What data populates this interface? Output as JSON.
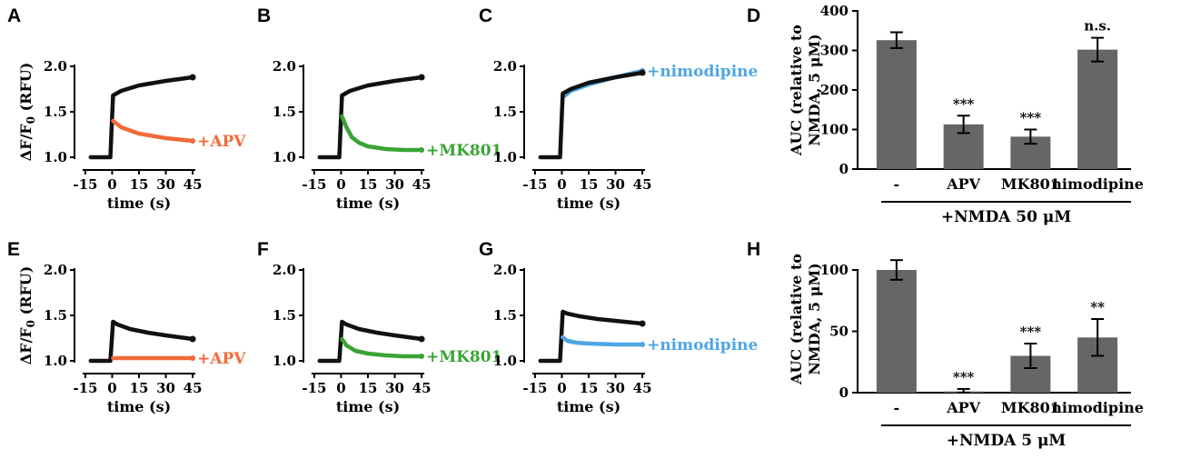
{
  "figure": {
    "panels": [
      "A",
      "B",
      "C",
      "D",
      "E",
      "F",
      "G",
      "H"
    ],
    "colors": {
      "control": "#111111",
      "APV": "#f26a3a",
      "MK801": "#3aa335",
      "nimodipine": "#4ea6e3",
      "bar": "#666666",
      "axis": "#000000"
    }
  },
  "chart_data": [
    {
      "panel": "A",
      "type": "line",
      "ylabel": "ΔF/F0 (RFU)",
      "xlabel": "time (s)",
      "xticks": [
        "-15",
        "0",
        "15",
        "30",
        "45"
      ],
      "yticks": [
        "1.0",
        "1.5",
        "2.0"
      ],
      "xlim": [
        -18,
        48
      ],
      "ylim": [
        0.9,
        2.15
      ],
      "annotation": "+APV",
      "series": [
        {
          "name": "control",
          "color": "#111111",
          "x": [
            -12,
            -1,
            0.5,
            5,
            15,
            30,
            45
          ],
          "y": [
            1.0,
            1.0,
            1.68,
            1.73,
            1.79,
            1.84,
            1.88
          ]
        },
        {
          "name": "+APV",
          "color": "#f26a3a",
          "x": [
            0.5,
            5,
            15,
            30,
            45
          ],
          "y": [
            1.4,
            1.33,
            1.26,
            1.21,
            1.18
          ]
        }
      ]
    },
    {
      "panel": "B",
      "type": "line",
      "ylabel": "",
      "xlabel": "time (s)",
      "xticks": [
        "-15",
        "0",
        "15",
        "30",
        "45"
      ],
      "yticks": [
        "1.0",
        "1.5",
        "2.0"
      ],
      "xlim": [
        -18,
        48
      ],
      "ylim": [
        0.9,
        2.15
      ],
      "annotation": "+MK801",
      "series": [
        {
          "name": "control",
          "color": "#111111",
          "x": [
            -12,
            -1,
            0.5,
            5,
            15,
            30,
            45
          ],
          "y": [
            1.0,
            1.0,
            1.68,
            1.73,
            1.79,
            1.84,
            1.88
          ]
        },
        {
          "name": "+MK801",
          "color": "#3aa335",
          "x": [
            0.5,
            3,
            6,
            10,
            15,
            25,
            35,
            45
          ],
          "y": [
            1.45,
            1.33,
            1.22,
            1.16,
            1.12,
            1.09,
            1.08,
            1.08
          ]
        }
      ]
    },
    {
      "panel": "C",
      "type": "line",
      "ylabel": "",
      "xlabel": "time (s)",
      "xticks": [
        "-15",
        "0",
        "15",
        "30",
        "45"
      ],
      "yticks": [
        "1.0",
        "1.5",
        "2.0"
      ],
      "xlim": [
        -18,
        48
      ],
      "ylim": [
        0.9,
        2.15
      ],
      "annotation": "+nimodipine",
      "series": [
        {
          "name": "+nimodipine",
          "color": "#4ea6e3",
          "x": [
            0.5,
            5,
            15,
            30,
            45
          ],
          "y": [
            1.66,
            1.73,
            1.8,
            1.88,
            1.95
          ]
        },
        {
          "name": "control",
          "color": "#111111",
          "x": [
            -12,
            -1,
            0.5,
            5,
            15,
            30,
            45
          ],
          "y": [
            1.0,
            1.0,
            1.7,
            1.75,
            1.82,
            1.88,
            1.93
          ]
        }
      ]
    },
    {
      "panel": "D",
      "type": "bar",
      "ylabel": "AUC (relative to NMDA, 5 μM)",
      "categories": [
        "-",
        "APV",
        "MK801",
        "nimodipine"
      ],
      "values": [
        326,
        113,
        82,
        302
      ],
      "errors": [
        20,
        22,
        18,
        30
      ],
      "significance": [
        "",
        "***",
        "***",
        "n.s."
      ],
      "yticks": [
        "0",
        "100",
        "200",
        "300",
        "400"
      ],
      "ylim": [
        0,
        400
      ],
      "group_label": "+NMDA 50 μM"
    },
    {
      "panel": "E",
      "type": "line",
      "ylabel": "ΔF/F0 (RFU)",
      "xlabel": "time (s)",
      "xticks": [
        "-15",
        "0",
        "15",
        "30",
        "45"
      ],
      "yticks": [
        "1.0",
        "1.5",
        "2.0"
      ],
      "xlim": [
        -18,
        48
      ],
      "ylim": [
        0.9,
        2.15
      ],
      "annotation": "+APV",
      "series": [
        {
          "name": "control",
          "color": "#111111",
          "x": [
            -12,
            -1,
            0.5,
            3,
            10,
            20,
            30,
            45
          ],
          "y": [
            1.0,
            1.0,
            1.43,
            1.4,
            1.35,
            1.31,
            1.28,
            1.24
          ]
        },
        {
          "name": "+APV",
          "color": "#f26a3a",
          "x": [
            0.5,
            45
          ],
          "y": [
            1.03,
            1.03
          ]
        }
      ]
    },
    {
      "panel": "F",
      "type": "line",
      "ylabel": "",
      "xlabel": "time (s)",
      "xticks": [
        "-15",
        "0",
        "15",
        "30",
        "45"
      ],
      "yticks": [
        "1.0",
        "1.5",
        "2.0"
      ],
      "xlim": [
        -18,
        48
      ],
      "ylim": [
        0.9,
        2.15
      ],
      "annotation": "+MK801",
      "series": [
        {
          "name": "control",
          "color": "#111111",
          "x": [
            -12,
            -1,
            0.5,
            3,
            10,
            20,
            30,
            45
          ],
          "y": [
            1.0,
            1.0,
            1.43,
            1.4,
            1.35,
            1.31,
            1.28,
            1.24
          ]
        },
        {
          "name": "+MK801",
          "color": "#3aa335",
          "x": [
            0.5,
            3,
            8,
            15,
            25,
            35,
            45
          ],
          "y": [
            1.24,
            1.17,
            1.11,
            1.08,
            1.06,
            1.05,
            1.05
          ]
        }
      ]
    },
    {
      "panel": "G",
      "type": "line",
      "ylabel": "",
      "xlabel": "time (s)",
      "xticks": [
        "-15",
        "0",
        "15",
        "30",
        "45"
      ],
      "yticks": [
        "1.0",
        "1.5",
        "2.0"
      ],
      "xlim": [
        -18,
        48
      ],
      "ylim": [
        0.9,
        2.15
      ],
      "annotation": "+nimodipine",
      "series": [
        {
          "name": "control",
          "color": "#111111",
          "x": [
            -12,
            -1,
            0.5,
            3,
            10,
            20,
            30,
            45
          ],
          "y": [
            1.0,
            1.0,
            1.54,
            1.52,
            1.49,
            1.46,
            1.44,
            1.41
          ]
        },
        {
          "name": "+nimodipine",
          "color": "#4ea6e3",
          "x": [
            0.5,
            3,
            8,
            15,
            30,
            45
          ],
          "y": [
            1.26,
            1.22,
            1.2,
            1.19,
            1.18,
            1.18
          ]
        }
      ]
    },
    {
      "panel": "H",
      "type": "bar",
      "ylabel": "AUC (relative to NMDA, 5 μM)",
      "categories": [
        "-",
        "APV",
        "MK801",
        "nimodipine"
      ],
      "values": [
        100,
        1,
        30,
        45
      ],
      "errors": [
        8,
        2,
        10,
        15
      ],
      "significance": [
        "",
        "***",
        "***",
        "**"
      ],
      "yticks": [
        "0",
        "50",
        "100"
      ],
      "ylim": [
        0,
        120
      ],
      "group_label": "+NMDA 5 μM"
    }
  ]
}
